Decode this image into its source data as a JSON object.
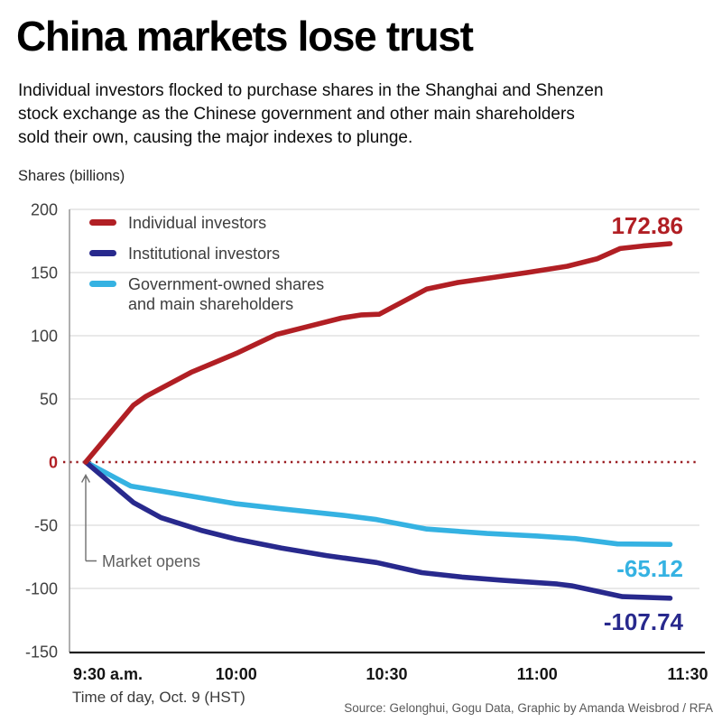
{
  "header": {
    "title": "China markets lose trust",
    "subtitle_lines": [
      "Individual investors flocked to purchase shares in the Shanghai and Shenzen",
      "stock exchange as the Chinese government and other main shareholders",
      "sold their own, causing the major indexes to plunge."
    ]
  },
  "legend": {
    "position": "top-left-inside-plot",
    "items": [
      {
        "label": "Individual investors",
        "lines": [
          "Individual investors"
        ],
        "color": "#b11f24"
      },
      {
        "label": "Institutional investors",
        "lines": [
          "Institutional investors"
        ],
        "color": "#28298d"
      },
      {
        "label": "Government-owned shares and main shareholders",
        "lines": [
          "Government-owned shares",
          "and main shareholders"
        ],
        "color": "#35b2e2"
      }
    ]
  },
  "chart_data": {
    "type": "line",
    "title": "China markets lose trust",
    "y_label": "Shares (billions)",
    "x_label": "Time of day, Oct. 9 (HST)",
    "xlim_minutes": [
      0,
      120
    ],
    "ylim": [
      -150,
      200
    ],
    "grid": "horizontal",
    "y_ticks": [
      200,
      150,
      100,
      50,
      0,
      -50,
      -100,
      -150
    ],
    "x_ticks": [
      {
        "t": 0,
        "label": "9:30 a.m."
      },
      {
        "t": 30,
        "label": "10:00"
      },
      {
        "t": 60,
        "label": "10:30"
      },
      {
        "t": 90,
        "label": "11:00"
      },
      {
        "t": 120,
        "label": "11:30"
      }
    ],
    "zero_line": {
      "value": 0,
      "style": "dotted",
      "color": "#9a1b20"
    },
    "series": [
      {
        "name": "Individual investors",
        "color": "#b11f24",
        "end_label": "172.86",
        "end_value": 172.86,
        "points": [
          [
            0,
            0
          ],
          [
            9.5,
            45
          ],
          [
            12,
            52
          ],
          [
            21,
            71
          ],
          [
            30,
            86
          ],
          [
            38,
            101
          ],
          [
            44,
            107
          ],
          [
            51,
            114
          ],
          [
            55,
            116.5
          ],
          [
            58.5,
            117
          ],
          [
            68,
            137
          ],
          [
            74,
            142
          ],
          [
            81,
            146
          ],
          [
            88,
            150
          ],
          [
            96,
            155
          ],
          [
            102,
            161
          ],
          [
            106.5,
            169
          ],
          [
            111,
            171
          ],
          [
            116.5,
            172.86
          ]
        ]
      },
      {
        "name": "Institutional investors",
        "color": "#28298d",
        "end_label": "-107.74",
        "end_value": -107.74,
        "points": [
          [
            0,
            0
          ],
          [
            9.5,
            -32
          ],
          [
            15,
            -44
          ],
          [
            23,
            -54
          ],
          [
            30,
            -61
          ],
          [
            39,
            -68
          ],
          [
            48,
            -74
          ],
          [
            58,
            -79.5
          ],
          [
            67,
            -87.5
          ],
          [
            75,
            -91
          ],
          [
            83,
            -93.5
          ],
          [
            94,
            -96.5
          ],
          [
            97,
            -98
          ],
          [
            107,
            -106.5
          ],
          [
            116.5,
            -107.74
          ]
        ]
      },
      {
        "name": "Government-owned shares and main shareholders",
        "color": "#35b2e2",
        "end_label": "-65.12",
        "end_value": -65.12,
        "points": [
          [
            0,
            0
          ],
          [
            9,
            -19
          ],
          [
            21,
            -27
          ],
          [
            30,
            -33
          ],
          [
            39,
            -37
          ],
          [
            51,
            -42
          ],
          [
            58,
            -45.5
          ],
          [
            68,
            -53
          ],
          [
            80,
            -56.5
          ],
          [
            90,
            -58.5
          ],
          [
            97.5,
            -60.5
          ],
          [
            106,
            -64.8
          ],
          [
            116.5,
            -65.12
          ]
        ]
      }
    ],
    "annotation": {
      "text": "Market opens",
      "t": 0,
      "v": 0
    }
  },
  "footer": {
    "source": "Source: Gelonghui, Gogu Data, Graphic by Amanda Weisbrod / RFA"
  },
  "colors": {
    "grid": "#dcdcdc",
    "y_axis_line": "#8f8f8f",
    "x_axis_line": "#1f1f1f",
    "y_tick_text": "#3f3f3f",
    "x_tick_text": "#141414",
    "zero_tick_text": "#b11f24",
    "annotation": "#6f6f6f"
  }
}
